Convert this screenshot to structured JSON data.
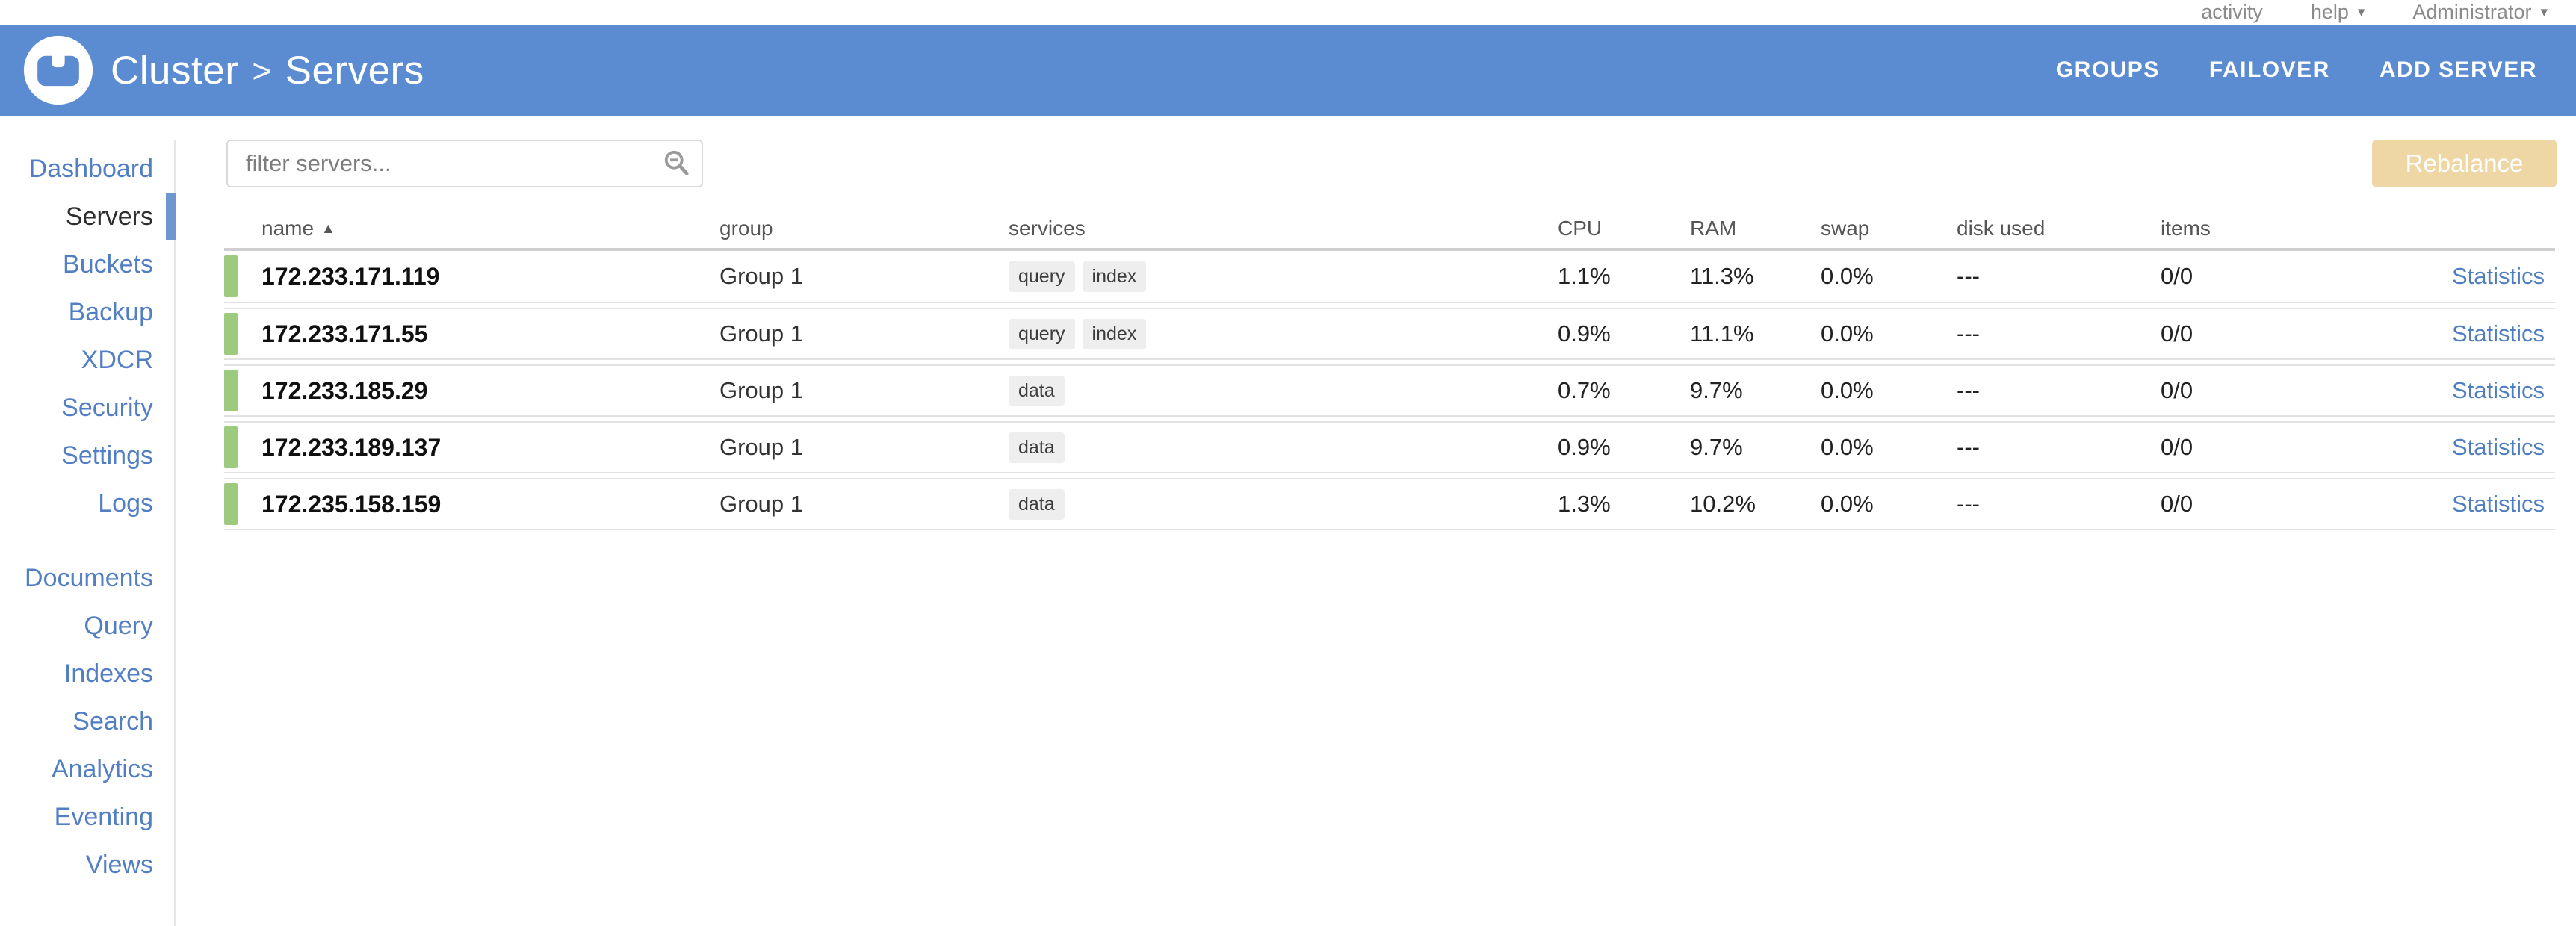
{
  "topbar": {
    "activity_label": "activity",
    "help_label": "help",
    "user_label": "Administrator"
  },
  "header": {
    "breadcrumb_section": "Cluster",
    "breadcrumb_separator": ">",
    "breadcrumb_page": "Servers",
    "nav": [
      "GROUPS",
      "FAILOVER",
      "ADD SERVER"
    ]
  },
  "sidebar": {
    "primary": [
      "Dashboard",
      "Servers",
      "Buckets",
      "Backup",
      "XDCR",
      "Security",
      "Settings",
      "Logs"
    ],
    "secondary": [
      "Documents",
      "Query",
      "Indexes",
      "Search",
      "Analytics",
      "Eventing",
      "Views"
    ],
    "active_item": "Servers"
  },
  "toolbar": {
    "filter_placeholder": "filter servers...",
    "rebalance_label": "Rebalance"
  },
  "icons": {
    "caret_down": "▾",
    "sort_asc": "▲",
    "search_icon": "magnifier-with-minus"
  },
  "table": {
    "columns": [
      "name",
      "group",
      "services",
      "CPU",
      "RAM",
      "swap",
      "disk used",
      "items"
    ],
    "stats_label": "Statistics",
    "rows": [
      {
        "name": "172.233.171.119",
        "group": "Group 1",
        "services": [
          "query",
          "index"
        ],
        "cpu": "1.1%",
        "ram": "11.3%",
        "swap": "0.0%",
        "disk_used": "---",
        "items": "0/0"
      },
      {
        "name": "172.233.171.55",
        "group": "Group 1",
        "services": [
          "query",
          "index"
        ],
        "cpu": "0.9%",
        "ram": "11.1%",
        "swap": "0.0%",
        "disk_used": "---",
        "items": "0/0"
      },
      {
        "name": "172.233.185.29",
        "group": "Group 1",
        "services": [
          "data"
        ],
        "cpu": "0.7%",
        "ram": "9.7%",
        "swap": "0.0%",
        "disk_used": "---",
        "items": "0/0"
      },
      {
        "name": "172.233.189.137",
        "group": "Group 1",
        "services": [
          "data"
        ],
        "cpu": "0.9%",
        "ram": "9.7%",
        "swap": "0.0%",
        "disk_used": "---",
        "items": "0/0"
      },
      {
        "name": "172.235.158.159",
        "group": "Group 1",
        "services": [
          "data"
        ],
        "cpu": "1.3%",
        "ram": "10.2%",
        "swap": "0.0%",
        "disk_used": "---",
        "items": "0/0"
      }
    ]
  },
  "colors": {
    "header_blue": "#5b8bd1",
    "link_blue": "#527fc4",
    "active_bar_blue": "#6f97cf",
    "status_green": "#9ccb80",
    "rebalance_tan": "#efd6a5",
    "badge_gray": "#eeeeee"
  }
}
